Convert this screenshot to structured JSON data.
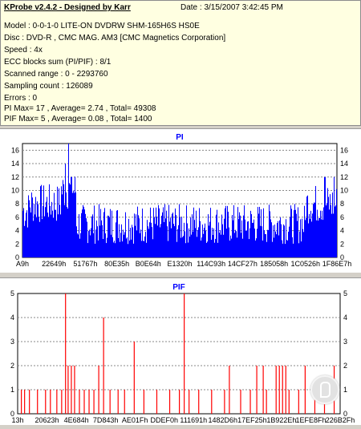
{
  "app": {
    "title": "KProbe v2.4.2 - Designed by Karr",
    "date": "Date : 3/15/2007 3:42:45 PM"
  },
  "info_lines": [
    "Model : 0-0-1-0 LITE-ON DVDRW SHM-165H6S HS0E",
    "Disc : DVD-R , CMC MAG. AM3 [CMC Magnetics Corporation]",
    "Speed : 4x",
    "ECC blocks sum (PI/PIF) : 8/1",
    "Scanned range : 0 - 2293760",
    "Sampling count : 126089",
    "Errors : 0",
    "PI Max= 17 , Average= 2.74 , Total= 49308",
    "PIF Max= 5 , Average= 0.08 , Total= 1400"
  ],
  "colors": {
    "info_bg": "#ffffe1",
    "series": "#0000ff",
    "pif_series": "#ff0000",
    "title": "#0000ff",
    "plot_bg": "#ffffff"
  },
  "chart_data": [
    {
      "type": "bar",
      "title": "PI",
      "ylim": [
        0,
        17
      ],
      "y_ticks": [
        0,
        2,
        4,
        6,
        8,
        10,
        12,
        14,
        16
      ],
      "x_tick_labels": [
        "A9h",
        "22649h",
        "51767h",
        "80E35h",
        "B0E64h",
        "E1320h",
        "114C93h",
        "14CF27h",
        "185058h",
        "1C0526h",
        "1F86E7h"
      ],
      "grid": true,
      "profile": [
        {
          "from": 0.0,
          "to": 0.02,
          "mean": 7,
          "spread": 3
        },
        {
          "from": 0.02,
          "to": 0.12,
          "mean": 8,
          "spread": 3
        },
        {
          "from": 0.12,
          "to": 0.17,
          "mean": 10,
          "spread": 3
        },
        {
          "from": 0.17,
          "to": 0.5,
          "mean": 5,
          "spread": 3
        },
        {
          "from": 0.5,
          "to": 0.9,
          "mean": 5,
          "spread": 3
        },
        {
          "from": 0.9,
          "to": 1.0,
          "mean": 8,
          "spread": 3
        }
      ],
      "spikes": [
        {
          "x": 0.135,
          "value": 14
        },
        {
          "x": 0.145,
          "value": 17
        },
        {
          "x": 0.155,
          "value": 12
        },
        {
          "x": 0.96,
          "value": 12
        },
        {
          "x": 0.99,
          "value": 12
        }
      ]
    },
    {
      "type": "bar",
      "title": "PIF",
      "ylim": [
        0,
        5
      ],
      "y_ticks": [
        0,
        1,
        2,
        3,
        4,
        5
      ],
      "x_tick_labels": [
        "13h",
        "20623h",
        "4E684h",
        "7D843h",
        "AE01Fh",
        "DDEF0h",
        "111691h",
        "1482D6h",
        "17EF25h",
        "1B922Eh",
        "1EFE8Fh",
        "226B2Fh"
      ],
      "grid": true,
      "bars": [
        {
          "x": 0.01,
          "value": 1
        },
        {
          "x": 0.02,
          "value": 1
        },
        {
          "x": 0.035,
          "value": 1
        },
        {
          "x": 0.06,
          "value": 1
        },
        {
          "x": 0.085,
          "value": 1
        },
        {
          "x": 0.1,
          "value": 1
        },
        {
          "x": 0.12,
          "value": 1
        },
        {
          "x": 0.135,
          "value": 1
        },
        {
          "x": 0.147,
          "value": 5
        },
        {
          "x": 0.155,
          "value": 2
        },
        {
          "x": 0.165,
          "value": 2
        },
        {
          "x": 0.175,
          "value": 2
        },
        {
          "x": 0.19,
          "value": 1
        },
        {
          "x": 0.205,
          "value": 1
        },
        {
          "x": 0.22,
          "value": 1
        },
        {
          "x": 0.235,
          "value": 1
        },
        {
          "x": 0.25,
          "value": 2
        },
        {
          "x": 0.265,
          "value": 4
        },
        {
          "x": 0.285,
          "value": 1
        },
        {
          "x": 0.31,
          "value": 1
        },
        {
          "x": 0.33,
          "value": 1
        },
        {
          "x": 0.36,
          "value": 3
        },
        {
          "x": 0.39,
          "value": 1
        },
        {
          "x": 0.43,
          "value": 1
        },
        {
          "x": 0.47,
          "value": 1
        },
        {
          "x": 0.5,
          "value": 1
        },
        {
          "x": 0.515,
          "value": 5
        },
        {
          "x": 0.53,
          "value": 1
        },
        {
          "x": 0.56,
          "value": 1
        },
        {
          "x": 0.6,
          "value": 1
        },
        {
          "x": 0.64,
          "value": 1
        },
        {
          "x": 0.655,
          "value": 2
        },
        {
          "x": 0.69,
          "value": 1
        },
        {
          "x": 0.72,
          "value": 1
        },
        {
          "x": 0.74,
          "value": 2
        },
        {
          "x": 0.76,
          "value": 2
        },
        {
          "x": 0.77,
          "value": 1
        },
        {
          "x": 0.8,
          "value": 2
        },
        {
          "x": 0.81,
          "value": 2
        },
        {
          "x": 0.82,
          "value": 2
        },
        {
          "x": 0.83,
          "value": 2
        },
        {
          "x": 0.84,
          "value": 1
        },
        {
          "x": 0.87,
          "value": 1
        },
        {
          "x": 0.89,
          "value": 2
        },
        {
          "x": 0.92,
          "value": 1
        },
        {
          "x": 0.95,
          "value": 1
        },
        {
          "x": 0.98,
          "value": 2
        }
      ]
    }
  ]
}
